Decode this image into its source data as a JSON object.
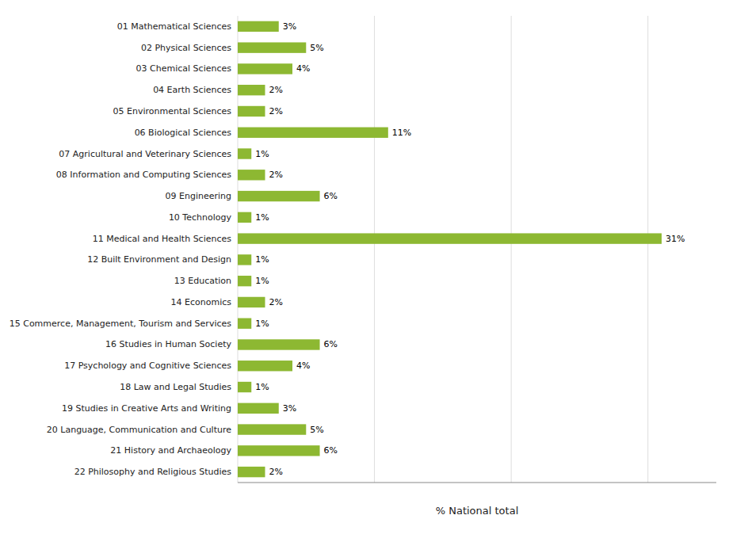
{
  "chart_data": {
    "type": "bar",
    "orientation": "horizontal",
    "xlabel": "% National total",
    "categories": [
      "01 Mathematical Sciences",
      "02 Physical Sciences",
      "03 Chemical Sciences",
      "04 Earth Sciences",
      "05 Environmental Sciences",
      "06 Biological Sciences",
      "07 Agricultural and Veterinary Sciences",
      "08 Information and Computing Sciences",
      "09 Engineering",
      "10 Technology",
      "11 Medical and Health Sciences",
      "12 Built Environment and Design",
      "13 Education",
      "14 Economics",
      "15 Commerce, Management, Tourism and Services",
      "16 Studies in Human Society",
      "17 Psychology and Cognitive Sciences",
      "18 Law and Legal Studies",
      "19 Studies in Creative Arts and Writing",
      "20 Language, Communication and Culture",
      "21 History and Archaeology",
      "22 Philosophy and Religious Studies"
    ],
    "values": [
      3,
      5,
      4,
      2,
      2,
      11,
      1,
      2,
      6,
      1,
      31,
      1,
      1,
      2,
      1,
      6,
      4,
      1,
      3,
      5,
      6,
      2
    ],
    "value_labels": [
      "3%",
      "5%",
      "4%",
      "2%",
      "2%",
      "11%",
      "1%",
      "2%",
      "6%",
      "1%",
      "31%",
      "1%",
      "1%",
      "2%",
      "1%",
      "6%",
      "4%",
      "1%",
      "3%",
      "5%",
      "6%",
      "2%"
    ],
    "data_labels": true,
    "color": "#8db832",
    "xlim": [
      0,
      35
    ],
    "xticks": [
      0,
      10,
      20,
      30
    ],
    "grid": true,
    "tick_labels": "y"
  }
}
